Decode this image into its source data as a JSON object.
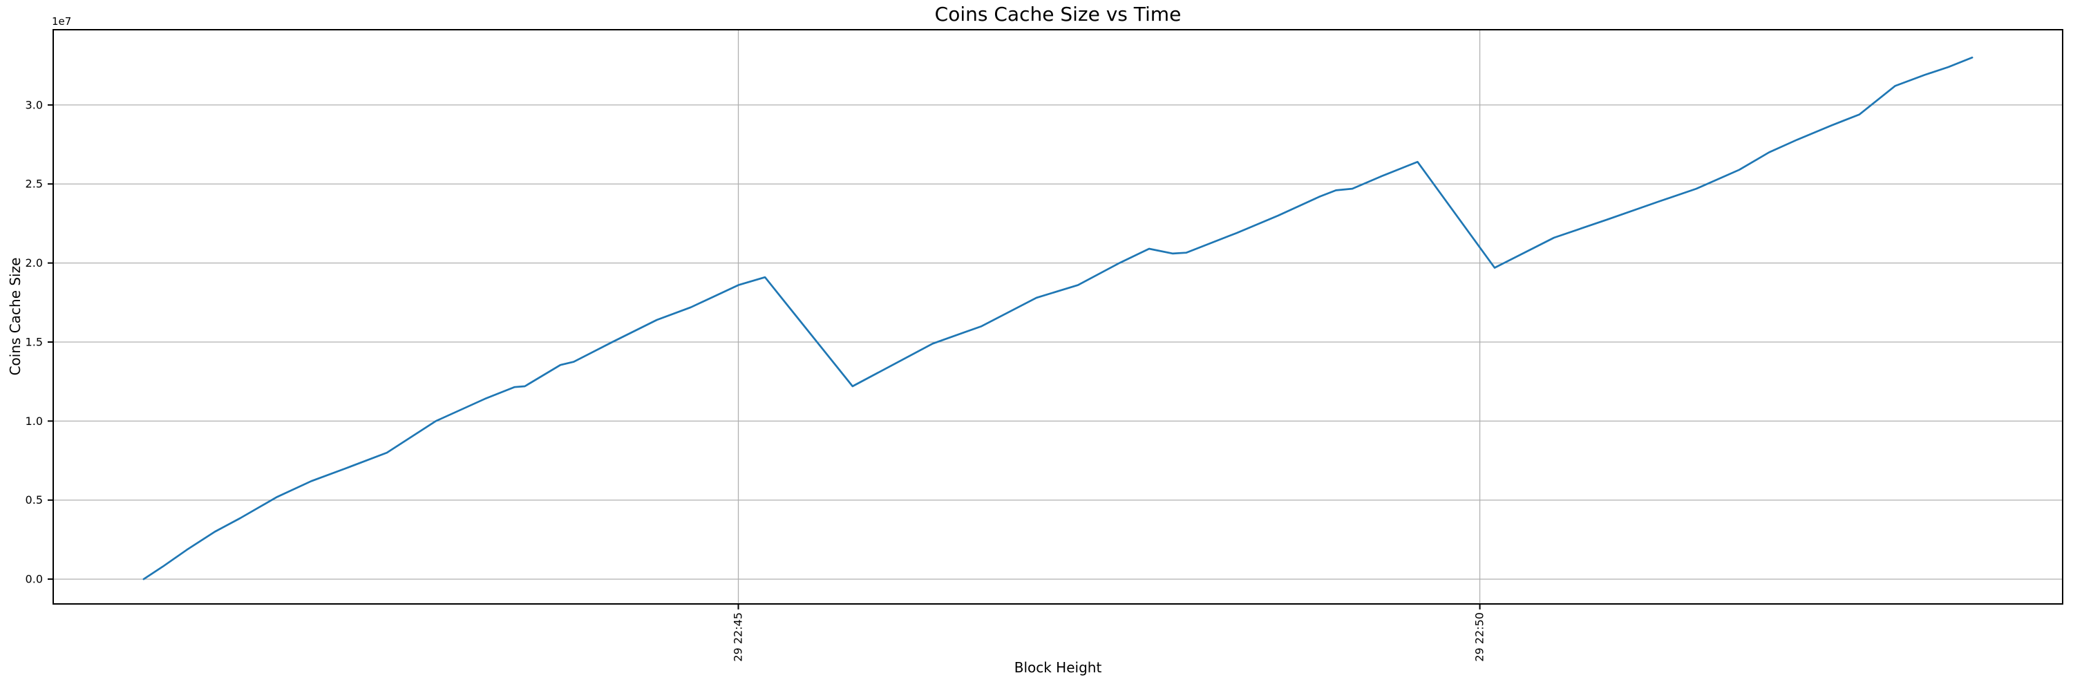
{
  "chart_data": {
    "type": "line",
    "title": "Coins Cache Size vs Time",
    "xlabel": "Block Height",
    "ylabel": "Coins Cache Size",
    "y_offset_text": "1e7",
    "grid": true,
    "legend": false,
    "x_ticks": [
      {
        "t": 0,
        "label": "29 22:45"
      },
      {
        "t": 5,
        "label": "29 22:50"
      }
    ],
    "y_ticks": [
      {
        "v": 0.0,
        "label": "0.0"
      },
      {
        "v": 0.5,
        "label": "0.5"
      },
      {
        "v": 1.0,
        "label": "1.0"
      },
      {
        "v": 1.5,
        "label": "1.5"
      },
      {
        "v": 2.0,
        "label": "2.0"
      },
      {
        "v": 2.5,
        "label": "2.5"
      },
      {
        "v": 3.0,
        "label": "3.0"
      }
    ],
    "x_axis_range_minutes_rel_first_tick": [
      -4.62,
      8.93
    ],
    "y_axis_range_e7": [
      -0.157,
      3.476
    ],
    "series": [
      {
        "name": "coins-cache-size",
        "color": "#1f77b4",
        "points_t_minutes_vs_value_e7": [
          [
            -4.01,
            0.0
          ],
          [
            -3.88,
            0.08
          ],
          [
            -3.72,
            0.185
          ],
          [
            -3.53,
            0.3
          ],
          [
            -3.36,
            0.385
          ],
          [
            -3.11,
            0.52
          ],
          [
            -2.88,
            0.62
          ],
          [
            -2.65,
            0.7
          ],
          [
            -2.37,
            0.8
          ],
          [
            -2.04,
            1.0
          ],
          [
            -1.71,
            1.14
          ],
          [
            -1.51,
            1.215
          ],
          [
            -1.44,
            1.22
          ],
          [
            -1.2,
            1.355
          ],
          [
            -1.11,
            1.375
          ],
          [
            -0.85,
            1.5
          ],
          [
            -0.55,
            1.64
          ],
          [
            -0.32,
            1.72
          ],
          [
            0.0,
            1.86
          ],
          [
            0.18,
            1.91
          ],
          [
            0.77,
            1.22
          ],
          [
            1.03,
            1.35
          ],
          [
            1.31,
            1.49
          ],
          [
            1.64,
            1.6
          ],
          [
            2.01,
            1.78
          ],
          [
            2.29,
            1.86
          ],
          [
            2.57,
            2.0
          ],
          [
            2.77,
            2.09
          ],
          [
            2.93,
            2.06
          ],
          [
            3.02,
            2.065
          ],
          [
            3.36,
            2.19
          ],
          [
            3.64,
            2.3
          ],
          [
            3.92,
            2.42
          ],
          [
            4.03,
            2.46
          ],
          [
            4.14,
            2.47
          ],
          [
            4.34,
            2.55
          ],
          [
            4.58,
            2.64
          ],
          [
            5.1,
            1.97
          ],
          [
            5.5,
            2.16
          ],
          [
            5.86,
            2.275
          ],
          [
            6.21,
            2.39
          ],
          [
            6.46,
            2.47
          ],
          [
            6.75,
            2.59
          ],
          [
            6.95,
            2.7
          ],
          [
            7.14,
            2.78
          ],
          [
            7.37,
            2.87
          ],
          [
            7.56,
            2.94
          ],
          [
            7.8,
            3.12
          ],
          [
            8.0,
            3.19
          ],
          [
            8.16,
            3.24
          ],
          [
            8.32,
            3.3
          ]
        ]
      }
    ]
  },
  "colors": {
    "line": "#1f77b4",
    "grid": "#b0b0b0",
    "spine": "#000000",
    "tick": "#000000",
    "text": "#000000",
    "background": "#ffffff"
  }
}
